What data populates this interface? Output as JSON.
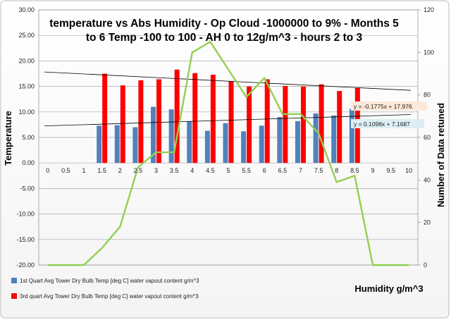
{
  "chart_data": {
    "type": "bar",
    "title_lines": [
      "temperature vs Abs Humidity  - Op Cloud -1000000 to 9% - Months 5",
      "to 6 Temp -100 to 100 - AH 0 to 12g/m^3 - hours 2 to 3"
    ],
    "xlabel": "Humidity  g/m^3",
    "ylabel": "Temperature",
    "y2label": "Number of Data retuned",
    "x": [
      0,
      0.5,
      1,
      1.5,
      2,
      2.5,
      3,
      3.5,
      4,
      4.5,
      5,
      5.5,
      6,
      6.5,
      7,
      7.5,
      8,
      8.5,
      9,
      9.5,
      10
    ],
    "x_tick_labels": [
      "0",
      "0.5",
      "1",
      "1.5",
      "2",
      "2.5",
      "3",
      "3.5",
      "4",
      "4.5",
      "5",
      "5.5",
      "6",
      "6.5",
      "7",
      "7.5",
      "8",
      "8.5",
      "9",
      "9.5",
      "10"
    ],
    "ylim": [
      -20,
      30
    ],
    "y_ticks": [
      "-20.00",
      "-15.00",
      "-10.00",
      "-5.00",
      "0.00",
      "5.00",
      "10.00",
      "15.00",
      "20.00",
      "25.00",
      "30.00"
    ],
    "y2lim": [
      0,
      120
    ],
    "y2_ticks": [
      "0",
      "20",
      "40",
      "60",
      "80",
      "100",
      "120"
    ],
    "series": [
      {
        "name": "1st Quart Avg Tower Dry Bulb Temp [deg C] water vapout content g/m^3",
        "color": "#4f81bd",
        "axis": "left",
        "values": [
          null,
          null,
          null,
          7.3,
          7.4,
          7.0,
          11.0,
          10.5,
          8.2,
          6.3,
          7.8,
          6.2,
          7.3,
          9.0,
          8.2,
          9.7,
          9.3,
          10.6,
          null,
          null,
          null
        ]
      },
      {
        "name": "3rd quart Avg Tower Dry Bulb Temp [deg C] water vapout content g/m^3",
        "color": "#ff0000",
        "axis": "left",
        "values": [
          null,
          null,
          null,
          17.5,
          15.2,
          16.2,
          16.4,
          18.3,
          17.6,
          17.3,
          16.0,
          15.0,
          16.4,
          15.1,
          15.0,
          15.4,
          14.1,
          14.7,
          null,
          null,
          null
        ]
      },
      {
        "name": "Number of Data retuned",
        "color": "#92d050",
        "axis": "right",
        "type": "line",
        "values": [
          0,
          0,
          0,
          8,
          18,
          46,
          53,
          53,
          100,
          105,
          92,
          79,
          88,
          71,
          71,
          62,
          39,
          42,
          0,
          0,
          0
        ]
      }
    ],
    "trendlines": [
      {
        "label": "y = -0.1775x + 17.976",
        "slope": -0.1775,
        "intercept": 17.976,
        "x_start": 0,
        "x_end": 20,
        "box_fill": "#fde9d9"
      },
      {
        "label": "y = 0.1098x + 7.1687",
        "slope": 0.1098,
        "intercept": 7.1687,
        "x_start": 0,
        "x_end": 20,
        "box_fill": "#dbeef4"
      }
    ],
    "legend_position": "bottom-left",
    "grid": true
  }
}
